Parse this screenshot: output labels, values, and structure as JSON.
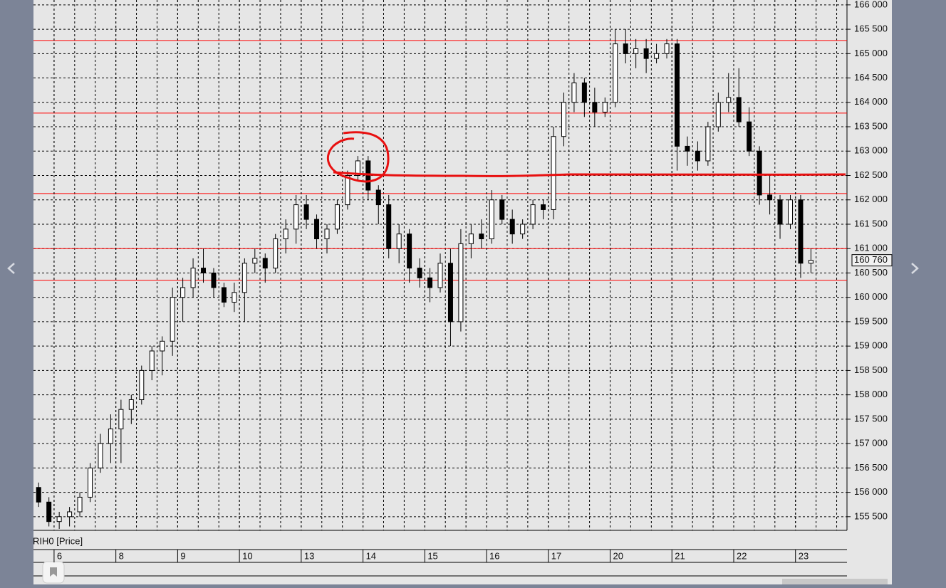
{
  "chart_data": {
    "type": "candlestick",
    "symbol_label": "RIH0 [Price]",
    "categories": [
      null,
      null,
      "6",
      null,
      null,
      null,
      null,
      null,
      "8",
      null,
      null,
      null,
      null,
      null,
      "9",
      null,
      null,
      null,
      null,
      null,
      "10",
      null,
      null,
      null,
      null,
      null,
      "13",
      null,
      null,
      null,
      null,
      null,
      "14",
      null,
      null,
      null,
      null,
      null,
      "15",
      null,
      null,
      null,
      null,
      null,
      "16",
      null,
      null,
      null,
      null,
      null,
      "17",
      null,
      null,
      null,
      null,
      null,
      "20",
      null,
      null,
      null,
      null,
      null,
      "21",
      null,
      null,
      null,
      null,
      null,
      "22",
      null,
      null,
      null,
      null,
      null,
      "23",
      null
    ],
    "open": [
      156100,
      155800,
      155400,
      155500,
      155600,
      155900,
      156500,
      157000,
      157300,
      157700,
      157900,
      158500,
      158900,
      159100,
      160000,
      160200,
      160600,
      160500,
      160200,
      159900,
      160100,
      160700,
      160800,
      160600,
      161200,
      161400,
      161900,
      161600,
      161200,
      161400,
      161900,
      162500,
      162800,
      162200,
      161900,
      161000,
      161300,
      160600,
      160400,
      160200,
      160700,
      159500,
      161100,
      161300,
      161200,
      162000,
      161600,
      161300,
      161500,
      161900,
      161800,
      163300,
      164000,
      164400,
      164000,
      163800,
      164000,
      165200,
      165000,
      165100,
      164900,
      165000,
      165200,
      163100,
      163000,
      162800,
      163500,
      164000,
      164100,
      163600,
      163000,
      162100,
      162000,
      161500,
      162000,
      160700
    ],
    "high": [
      156200,
      155900,
      155600,
      155700,
      156000,
      156600,
      157200,
      157600,
      157900,
      158000,
      158600,
      159000,
      159200,
      160200,
      160400,
      160800,
      161000,
      160600,
      160300,
      160300,
      160800,
      161000,
      160900,
      161300,
      161600,
      162100,
      162100,
      161700,
      161500,
      162000,
      162600,
      162900,
      162900,
      162300,
      162100,
      161500,
      161400,
      160800,
      160600,
      160900,
      161000,
      161400,
      161500,
      161600,
      162200,
      162100,
      161800,
      161600,
      162000,
      162000,
      163500,
      164200,
      164600,
      164500,
      164300,
      164100,
      165500,
      165500,
      165300,
      165300,
      165200,
      165300,
      165300,
      163300,
      163200,
      163600,
      164200,
      164600,
      164700,
      163900,
      163100,
      162500,
      162100,
      162100,
      162100,
      161000
    ],
    "low": [
      155700,
      155300,
      155250,
      155300,
      155500,
      155800,
      156400,
      156600,
      156600,
      157400,
      157800,
      158300,
      158400,
      158800,
      159500,
      160000,
      160300,
      160000,
      159800,
      159700,
      159500,
      160500,
      160300,
      160500,
      160900,
      161100,
      161400,
      161000,
      160900,
      161300,
      161800,
      162400,
      162000,
      161500,
      160800,
      160700,
      160300,
      160200,
      159900,
      160100,
      159000,
      159300,
      160800,
      161000,
      161100,
      161500,
      161100,
      161200,
      161400,
      161600,
      161600,
      163100,
      163800,
      163700,
      163500,
      163700,
      163900,
      164800,
      164700,
      164600,
      164800,
      164900,
      162600,
      162700,
      162600,
      162700,
      163400,
      163800,
      163500,
      162900,
      161900,
      161700,
      161200,
      161400,
      160400,
      160500
    ],
    "close": [
      155800,
      155400,
      155500,
      155600,
      155900,
      156500,
      157000,
      157300,
      157700,
      157900,
      158500,
      158900,
      159100,
      160000,
      160200,
      160600,
      160500,
      160200,
      159900,
      160100,
      160700,
      160800,
      160600,
      161200,
      161400,
      161900,
      161600,
      161200,
      161400,
      161900,
      162500,
      162800,
      162200,
      161900,
      161000,
      161300,
      160600,
      160400,
      160200,
      160700,
      159500,
      161100,
      161300,
      161200,
      162000,
      161600,
      161300,
      161500,
      161900,
      161800,
      163300,
      164000,
      164400,
      164000,
      163800,
      164000,
      165200,
      165000,
      165100,
      164900,
      165000,
      165200,
      163100,
      163000,
      162800,
      163500,
      164000,
      164100,
      163600,
      163000,
      162100,
      162000,
      161500,
      162000,
      160700,
      160760
    ],
    "up_color": "#ffffff",
    "down_color": "#000000",
    "levels": [
      165270,
      163780,
      162130,
      161000,
      160350
    ],
    "level_color": "#ff0000",
    "last_price": {
      "value": 160760,
      "label": "160 760"
    },
    "ylim": [
      155220,
      166100
    ],
    "yticks": [
      {
        "value": 155500,
        "label": "155 500"
      },
      {
        "value": 156000,
        "label": "156 000"
      },
      {
        "value": 156500,
        "label": "156 500"
      },
      {
        "value": 157000,
        "label": "157 000"
      },
      {
        "value": 157500,
        "label": "157 500"
      },
      {
        "value": 158000,
        "label": "158 000"
      },
      {
        "value": 158500,
        "label": "158 500"
      },
      {
        "value": 159000,
        "label": "159 000"
      },
      {
        "value": 159500,
        "label": "159 500"
      },
      {
        "value": 160000,
        "label": "160 000"
      },
      {
        "value": 160500,
        "label": "160 500"
      },
      {
        "value": 161000,
        "label": "161 000"
      },
      {
        "value": 161500,
        "label": "161 500"
      },
      {
        "value": 162000,
        "label": "162 000"
      },
      {
        "value": 162500,
        "label": "162 500"
      },
      {
        "value": 163000,
        "label": "163 000"
      },
      {
        "value": 163500,
        "label": "163 500"
      },
      {
        "value": 164000,
        "label": "164 000"
      },
      {
        "value": 164500,
        "label": "164 500"
      },
      {
        "value": 165000,
        "label": "165 000"
      },
      {
        "value": 165500,
        "label": "165 500"
      },
      {
        "value": 166000,
        "label": "166 000"
      }
    ],
    "grid": true
  }
}
